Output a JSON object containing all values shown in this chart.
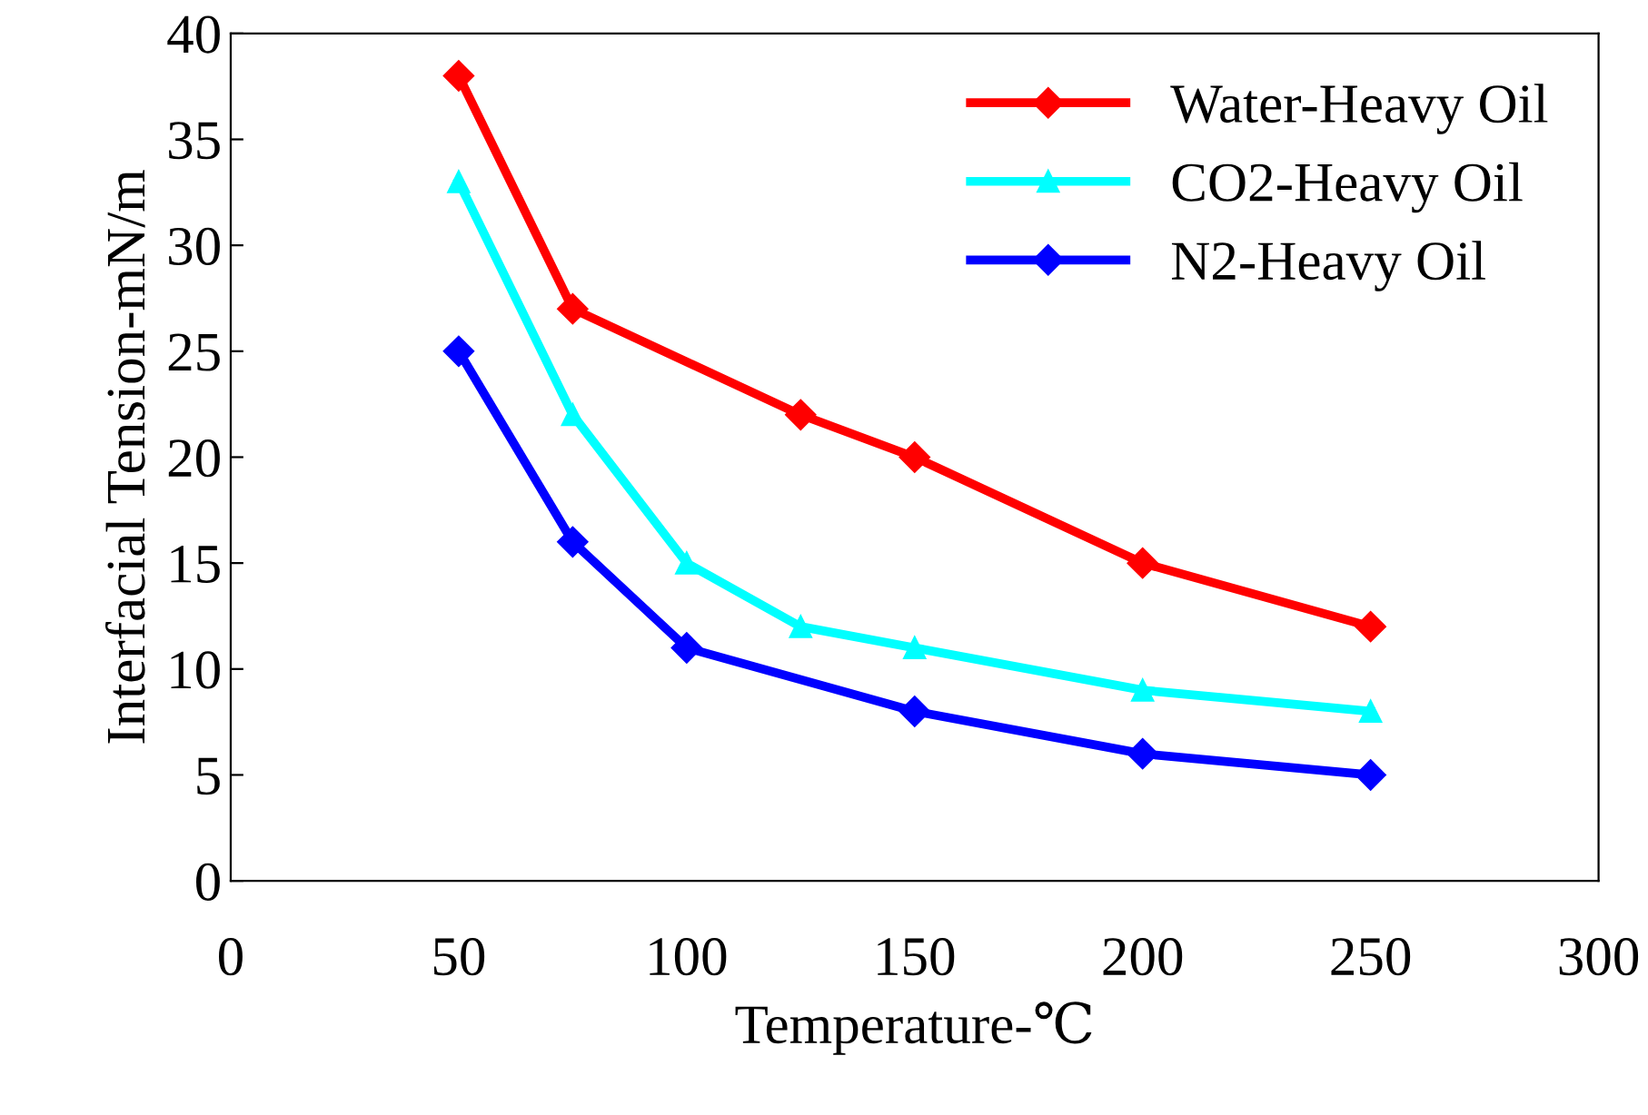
{
  "chart_data": {
    "type": "line",
    "xlabel": "Temperature-℃",
    "ylabel": "Interfacial Tension-mN/m",
    "xlim": [
      0,
      300
    ],
    "xticks": [
      0,
      50,
      100,
      150,
      200,
      250,
      300
    ],
    "ylim": [
      0,
      40
    ],
    "yticks": [
      0,
      5,
      10,
      15,
      20,
      25,
      30,
      35,
      40
    ],
    "grid": false,
    "legend": "top right",
    "series": [
      {
        "name": "Water-Heavy Oil",
        "color": "#ff0000",
        "marker": "diamond",
        "x": [
          50,
          75,
          125,
          150,
          200,
          250
        ],
        "values": [
          38,
          27,
          22,
          20,
          15,
          12
        ]
      },
      {
        "name": "CO2-Heavy Oil",
        "color": "#00ffff",
        "marker": "triangle",
        "x": [
          50,
          75,
          100,
          125,
          150,
          200,
          250
        ],
        "values": [
          33,
          22,
          15,
          12,
          11,
          9,
          8
        ]
      },
      {
        "name": "N2-Heavy Oil",
        "color": "#0000ff",
        "marker": "diamond",
        "x": [
          50,
          75,
          100,
          150,
          200,
          250
        ],
        "values": [
          25,
          16,
          11,
          8,
          6,
          5
        ]
      }
    ]
  }
}
